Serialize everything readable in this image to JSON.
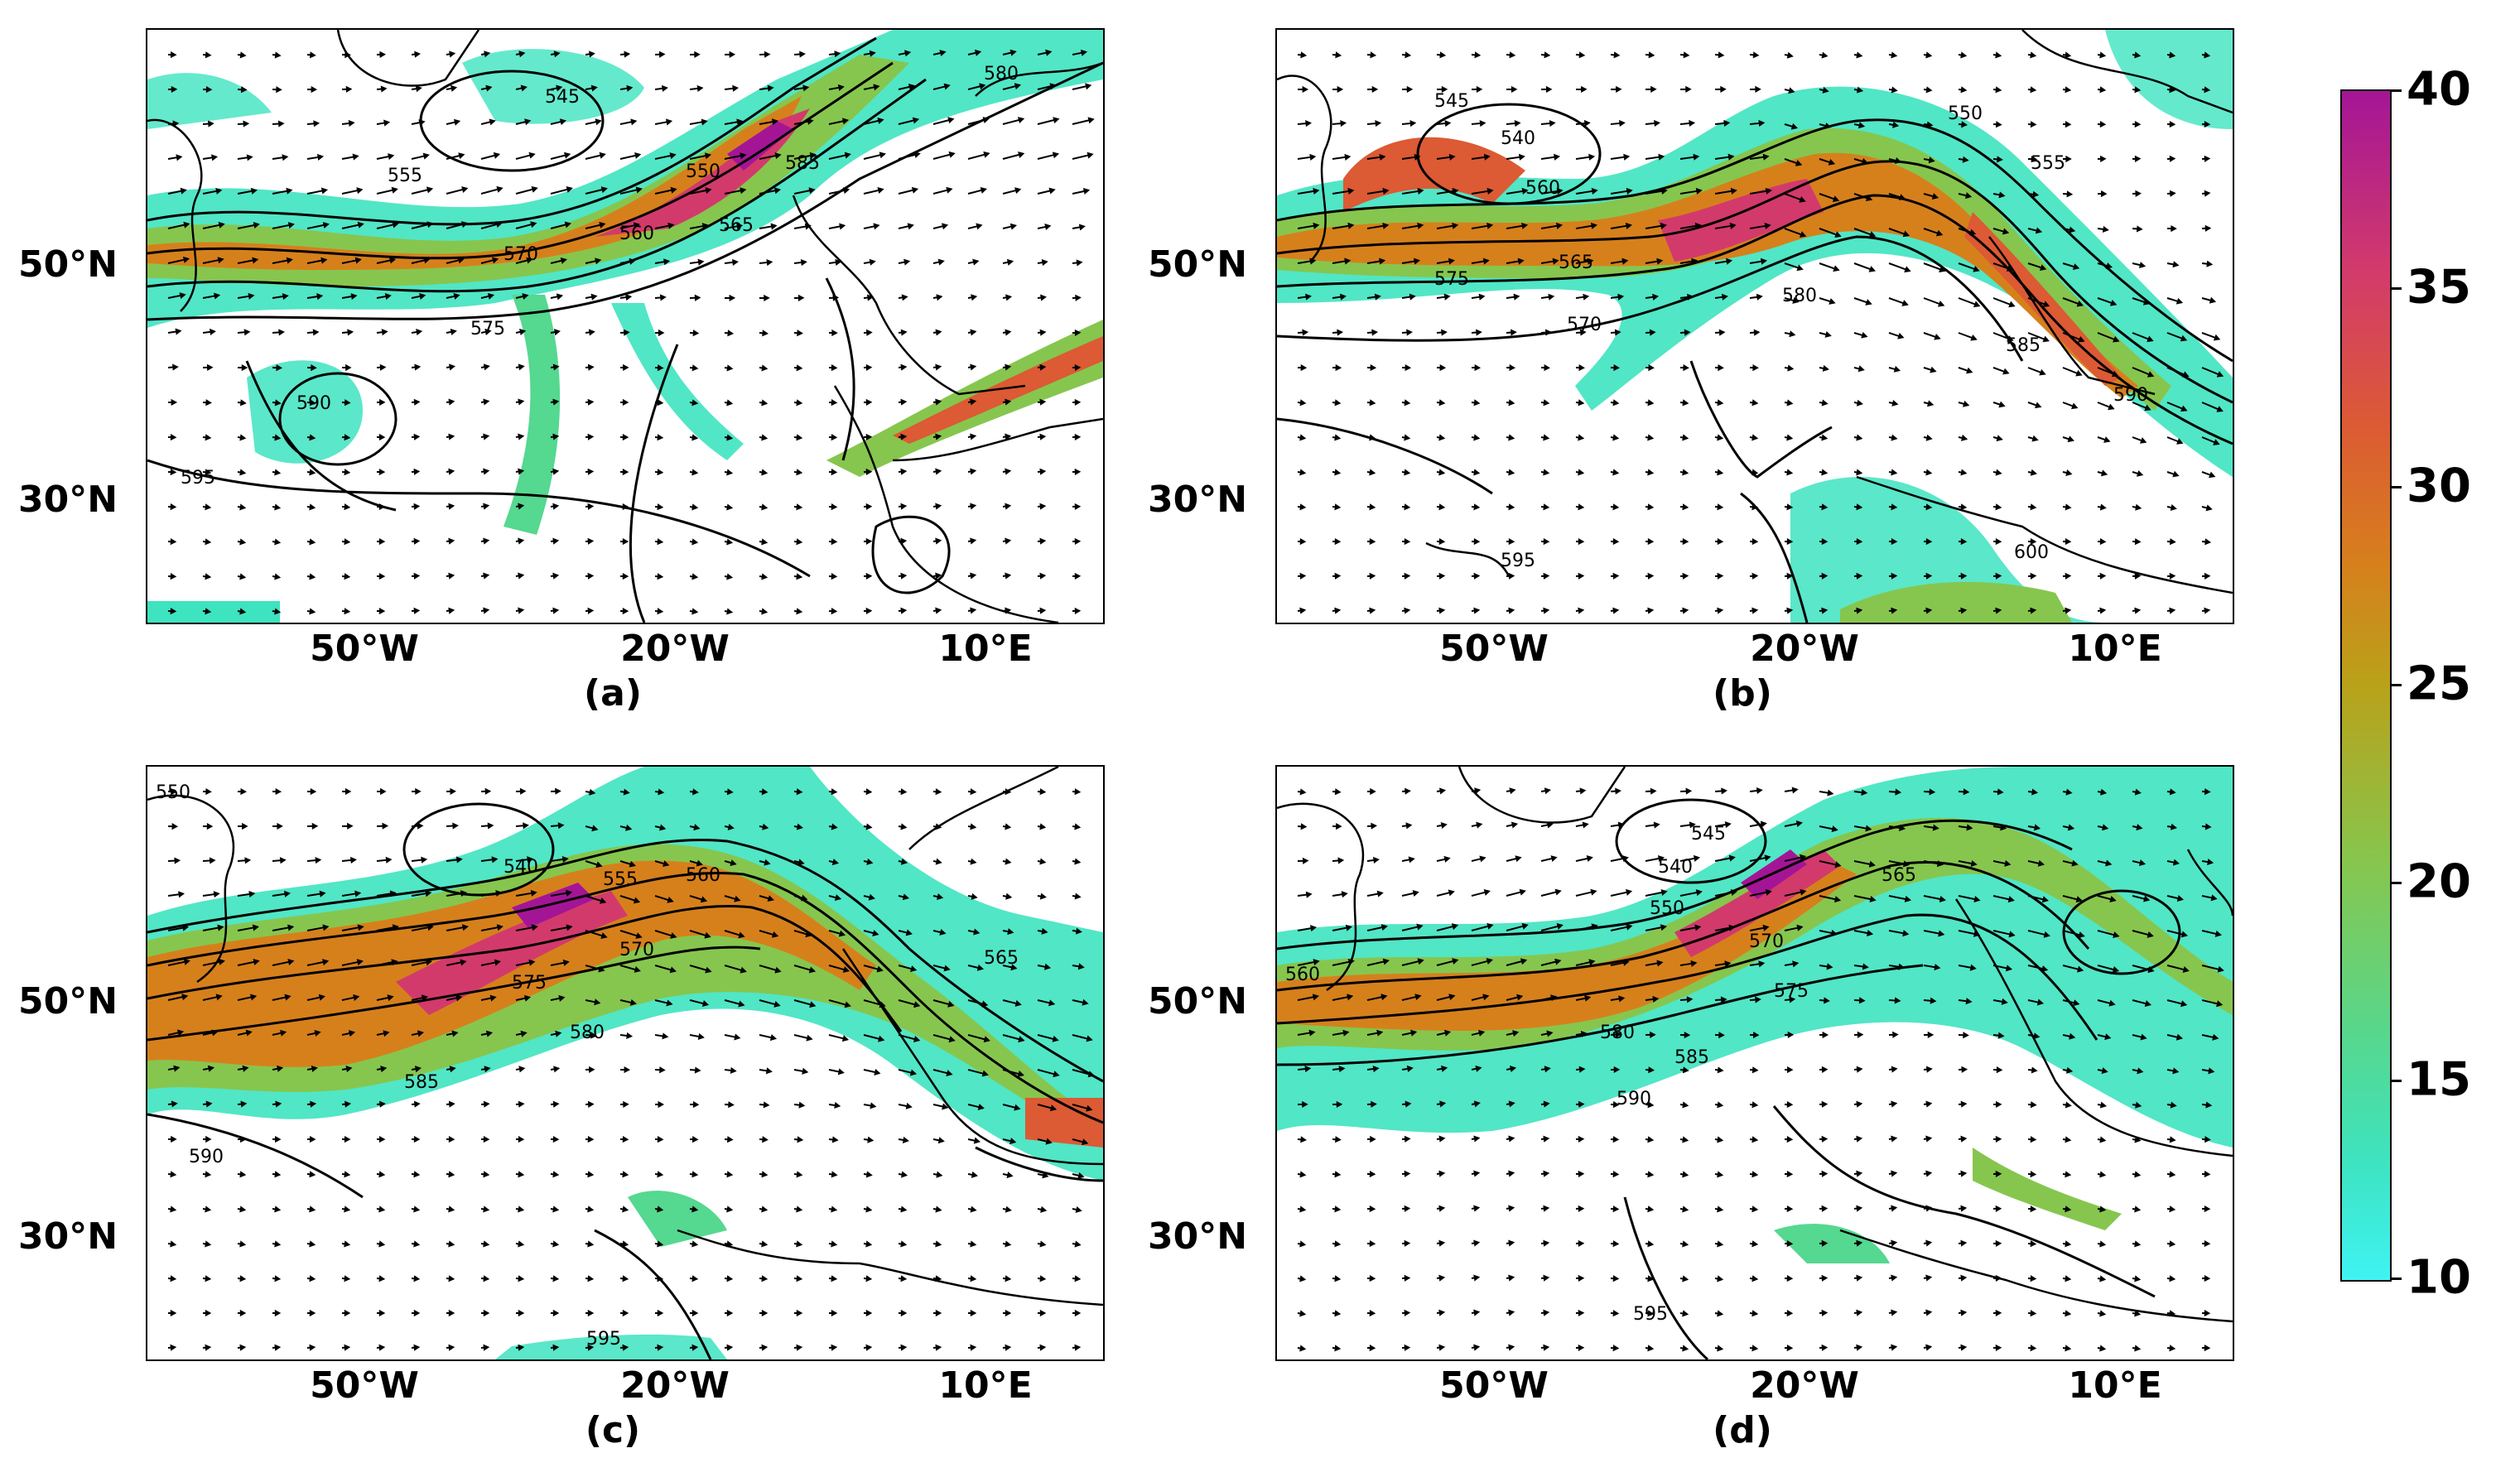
{
  "panels": [
    {
      "id": "a",
      "label": "(a)",
      "contour_labels": [
        "545",
        "550",
        "555",
        "560",
        "565",
        "570",
        "575",
        "580",
        "585",
        "590",
        "595"
      ]
    },
    {
      "id": "b",
      "label": "(b)",
      "contour_labels": [
        "540",
        "545",
        "550",
        "555",
        "560",
        "565",
        "570",
        "575",
        "580",
        "585",
        "590",
        "595",
        "600"
      ]
    },
    {
      "id": "c",
      "label": "(c)",
      "contour_labels": [
        "540",
        "550",
        "555",
        "560",
        "565",
        "570",
        "575",
        "580",
        "585",
        "590",
        "595"
      ]
    },
    {
      "id": "d",
      "label": "(d)",
      "contour_labels": [
        "540",
        "545",
        "550",
        "560",
        "565",
        "570",
        "575",
        "580",
        "585",
        "590",
        "595"
      ]
    }
  ],
  "axes": {
    "y_ticks": [
      "50°N",
      "30°N"
    ],
    "x_ticks": [
      "50°W",
      "20°W",
      "10°E"
    ]
  },
  "colorbar": {
    "ticks": [
      "40",
      "35",
      "30",
      "25",
      "20",
      "15",
      "10"
    ],
    "min": 10,
    "max": 40,
    "colors": [
      "#3ff3f3",
      "#55d890",
      "#b9a21a",
      "#d6801c",
      "#dc5a34",
      "#d23a6c",
      "#a41596"
    ]
  }
}
